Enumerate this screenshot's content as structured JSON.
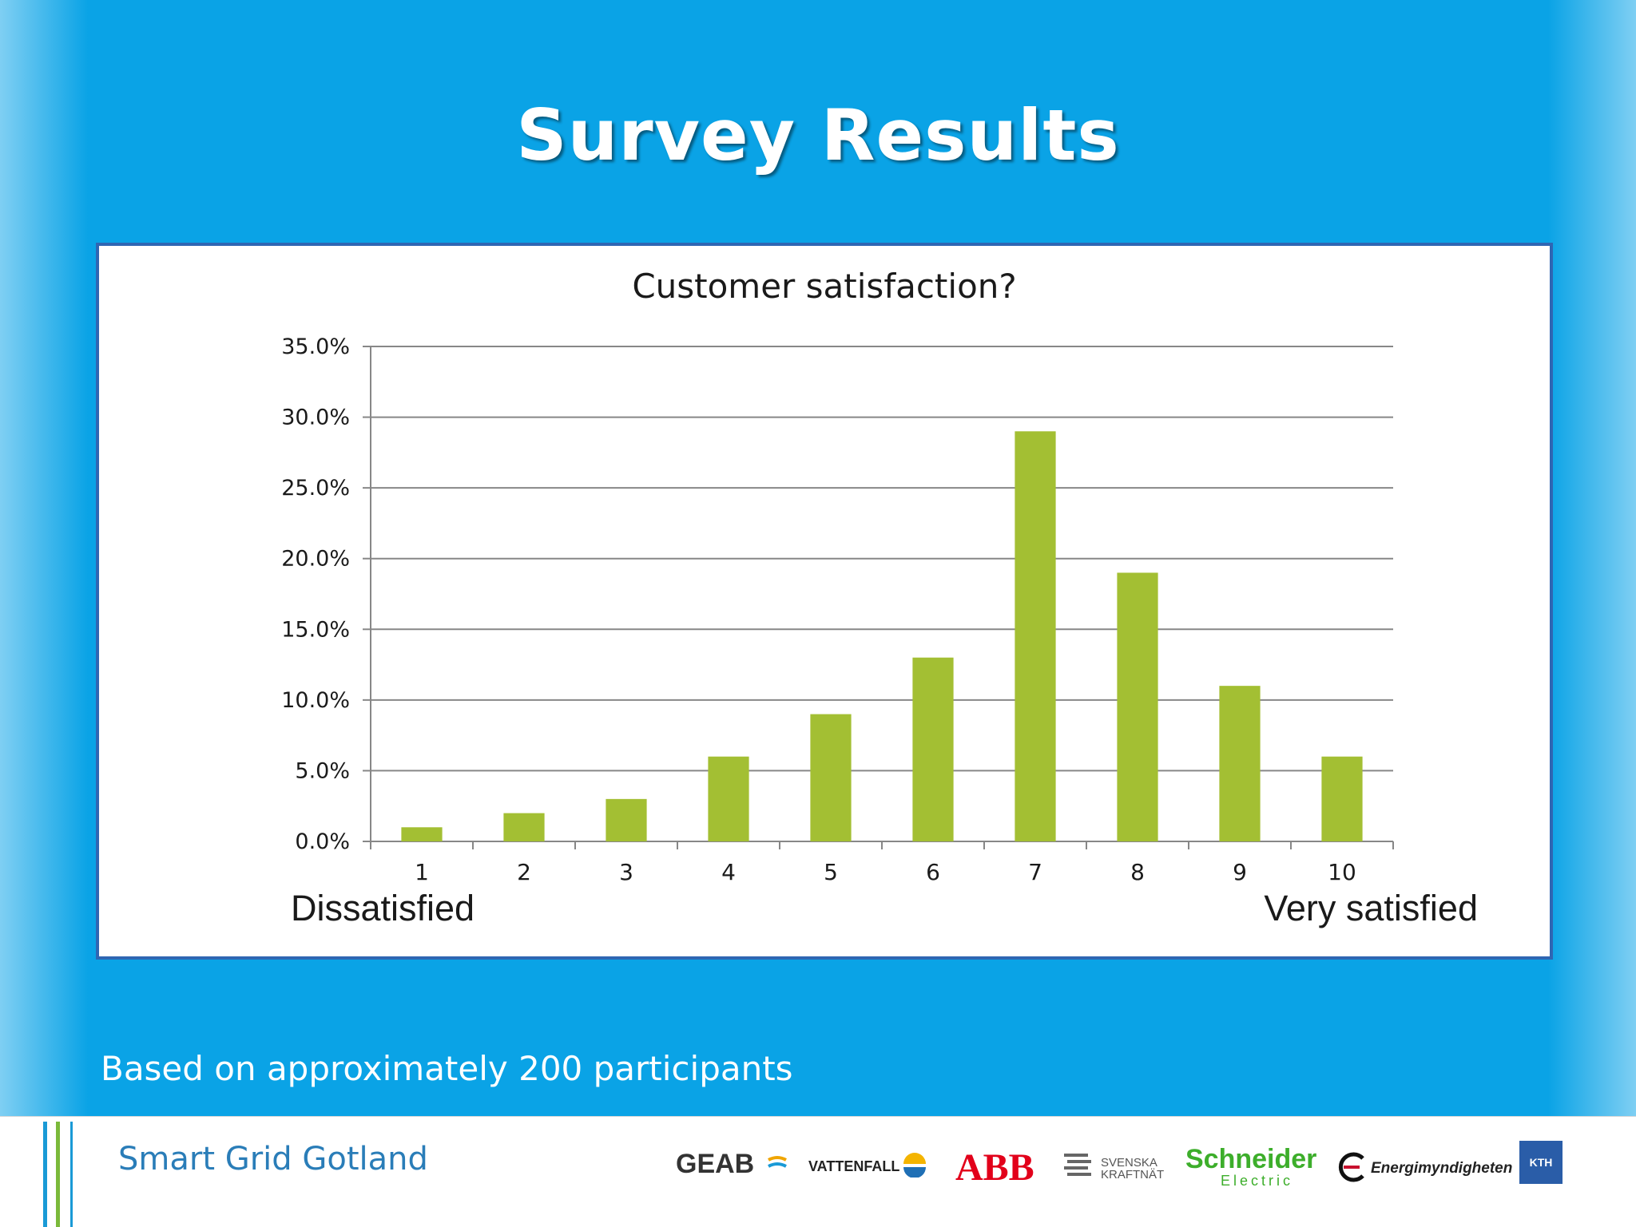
{
  "slide": {
    "title": "Survey Results",
    "footnote": "Based on approximately 200 participants"
  },
  "chart_data": {
    "type": "bar",
    "title": "Customer satisfaction?",
    "categories": [
      "1",
      "2",
      "3",
      "4",
      "5",
      "6",
      "7",
      "8",
      "9",
      "10"
    ],
    "values": [
      1.0,
      2.0,
      3.0,
      6.0,
      9.0,
      13.0,
      29.0,
      19.0,
      11.0,
      6.0
    ],
    "value_unit": "%",
    "ylim": [
      0,
      35
    ],
    "yticks": [
      "0.0%",
      "5.0%",
      "10.0%",
      "15.0%",
      "20.0%",
      "25.0%",
      "30.0%",
      "35.0%"
    ],
    "xlabel_low": "Dissatisfied",
    "xlabel_high": "Very satisfied",
    "grid": true,
    "bar_color": "#a3bf33",
    "grid_color": "#878787"
  },
  "footer": {
    "brand": "Smart Grid Gotland",
    "logos": {
      "geab": "GEAB",
      "vattenfall": "VATTENFALL",
      "abb": "ABB",
      "svk_line1": "SVENSKA",
      "svk_line2": "KRAFTNÄT",
      "schneider": "Schneider",
      "schneider_sub": "Electric",
      "energi": "Energimyndigheten",
      "kth": "KTH"
    },
    "accent_colors": [
      "#1a9ad6",
      "#7bb93a"
    ]
  }
}
